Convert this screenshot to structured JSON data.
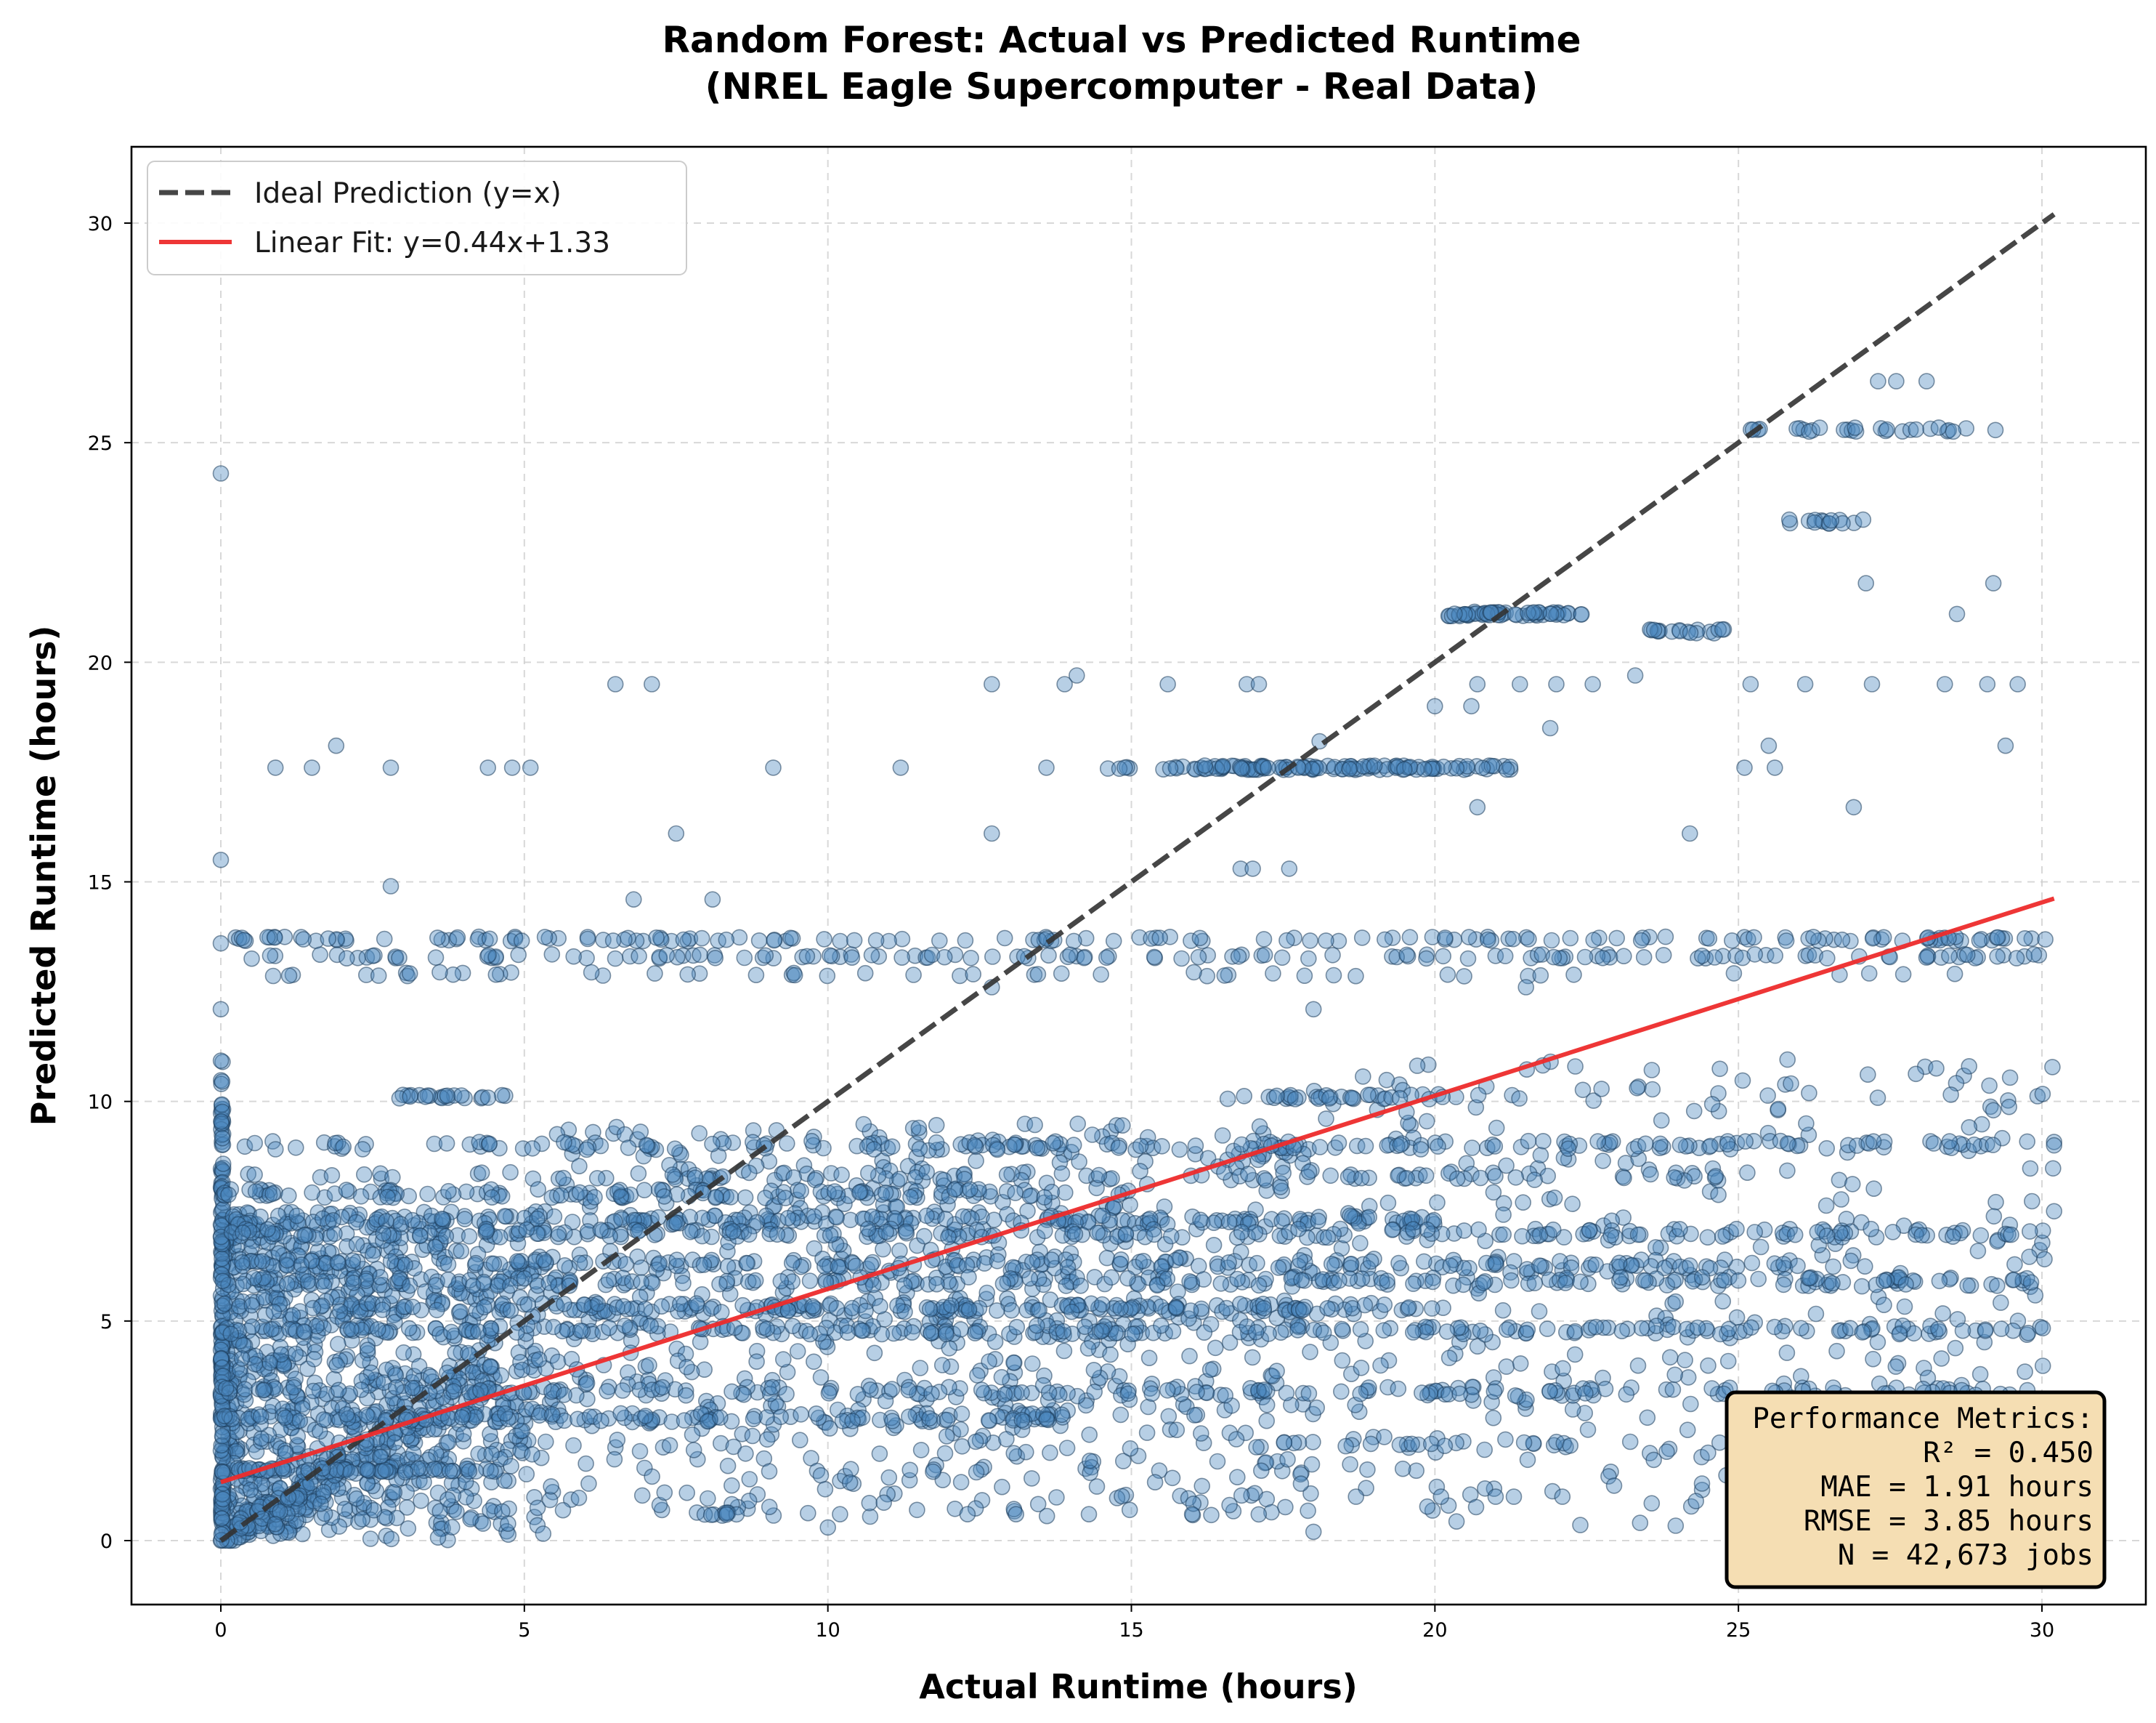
{
  "chart_data": {
    "type": "scatter",
    "title": "Random Forest: Actual vs Predicted Runtime",
    "subtitle": "(NREL Eagle Supercomputer - Real Data)",
    "xlabel": "Actual Runtime (hours)",
    "ylabel": "Predicted Runtime (hours)",
    "xlim": [
      -1.5,
      31.5
    ],
    "ylim": [
      -1.5,
      31.7
    ],
    "xticks": [
      0,
      5,
      10,
      15,
      20,
      25,
      30
    ],
    "yticks": [
      0,
      5,
      10,
      15,
      20,
      25,
      30
    ],
    "grid": true,
    "legend_position": "top-left",
    "colors": {
      "points": "#4682b4",
      "ideal_line": "#333333",
      "fit_line": "#ee2c2c",
      "metrics_box": "#f5deb3"
    },
    "series": [
      {
        "name": "Ideal Prediction (y=x)",
        "kind": "line",
        "style": "dashed",
        "x": [
          0,
          30.2
        ],
        "y": [
          0,
          30.2
        ]
      },
      {
        "name": "Linear Fit: y=0.44x+1.33",
        "kind": "line",
        "style": "solid",
        "x": [
          0,
          30.2
        ],
        "y": [
          1.33,
          14.62
        ]
      },
      {
        "kind": "scatter",
        "bands": [
          {
            "y": 13.7,
            "x_min": 0,
            "x_max": 30.2,
            "n": 160,
            "spread": 0.05
          },
          {
            "y": 13.3,
            "x_min": 0.3,
            "x_max": 30.2,
            "n": 140,
            "spread": 0.05
          },
          {
            "y": 12.9,
            "x_min": 0.3,
            "x_max": 29.5,
            "n": 50,
            "spread": 0.05
          },
          {
            "y": 17.6,
            "x_min": 16.0,
            "x_max": 21.3,
            "n": 110,
            "spread": 0.05
          },
          {
            "y": 17.6,
            "x_min": 14.5,
            "x_max": 16.0,
            "n": 10,
            "spread": 0.05
          },
          {
            "y": 21.1,
            "x_min": 20.2,
            "x_max": 22.5,
            "n": 55,
            "spread": 0.05
          },
          {
            "y": 20.7,
            "x_min": 23.5,
            "x_max": 24.8,
            "n": 18,
            "spread": 0.05
          },
          {
            "y": 25.3,
            "x_min": 25.1,
            "x_max": 29.3,
            "n": 28,
            "spread": 0.05
          },
          {
            "y": 23.2,
            "x_min": 25.8,
            "x_max": 27.1,
            "n": 14,
            "spread": 0.05
          },
          {
            "y": 10.1,
            "x_min": 2.9,
            "x_max": 4.7,
            "n": 22,
            "spread": 0.05
          },
          {
            "y": 10.1,
            "x_min": 16.5,
            "x_max": 21.5,
            "n": 35,
            "spread": 0.05
          },
          {
            "y": 9.0,
            "x_min": 0,
            "x_max": 30.2,
            "n": 170,
            "spread": 0.1
          },
          {
            "y": 8.3,
            "x_min": 0,
            "x_max": 25.0,
            "n": 90,
            "spread": 0.1
          },
          {
            "y": 7.9,
            "x_min": 0,
            "x_max": 14.0,
            "n": 120,
            "spread": 0.1
          },
          {
            "y": 7.3,
            "x_min": 0,
            "x_max": 20.0,
            "n": 180,
            "spread": 0.1
          },
          {
            "y": 7.0,
            "x_min": 0,
            "x_max": 30.2,
            "n": 200,
            "spread": 0.1
          },
          {
            "y": 6.3,
            "x_min": 0,
            "x_max": 26.0,
            "n": 170,
            "spread": 0.1
          },
          {
            "y": 5.9,
            "x_min": 0,
            "x_max": 30.2,
            "n": 220,
            "spread": 0.1
          },
          {
            "y": 5.3,
            "x_min": 0,
            "x_max": 20.5,
            "n": 200,
            "spread": 0.1
          },
          {
            "y": 4.8,
            "x_min": 0,
            "x_max": 30.2,
            "n": 230,
            "spread": 0.1
          },
          {
            "y": 3.4,
            "x_min": 0,
            "x_max": 30.0,
            "n": 170,
            "spread": 0.1
          },
          {
            "y": 2.8,
            "x_min": 0,
            "x_max": 14.0,
            "n": 130,
            "spread": 0.1
          },
          {
            "y": 2.2,
            "x_min": 17.5,
            "x_max": 22.5,
            "n": 20,
            "spread": 0.05
          },
          {
            "y": 1.6,
            "x_min": 0,
            "x_max": 4.5,
            "n": 60,
            "spread": 0.05
          },
          {
            "y": 0.6,
            "x_min": 7.8,
            "x_max": 8.6,
            "n": 10,
            "spread": 0.05
          }
        ],
        "dense_region": {
          "x_min": 0,
          "x_max": 5.5,
          "y_min": 0,
          "y_max": 7.5,
          "n": 900
        },
        "mid_cloud": {
          "x_min": 5.5,
          "x_max": 18,
          "y_min": 0.5,
          "y_max": 9.5,
          "n": 700
        },
        "far_cloud": {
          "x_min": 18,
          "x_max": 30.2,
          "y_min": 0.3,
          "y_max": 11,
          "n": 360
        },
        "x0_column": {
          "x": 0,
          "y_min": 0,
          "y_max": 11.0,
          "n": 120
        },
        "outliers": [
          [
            0,
            24.3
          ],
          [
            0,
            15.5
          ],
          [
            0,
            13.6
          ],
          [
            0,
            12.1
          ],
          [
            0.9,
            17.6
          ],
          [
            1.5,
            17.6
          ],
          [
            1.9,
            18.1
          ],
          [
            2.8,
            17.6
          ],
          [
            2.8,
            14.9
          ],
          [
            4.4,
            17.6
          ],
          [
            4.8,
            17.6
          ],
          [
            5.1,
            17.6
          ],
          [
            6.5,
            19.5
          ],
          [
            7.1,
            19.5
          ],
          [
            7.5,
            16.1
          ],
          [
            6.8,
            14.6
          ],
          [
            8.1,
            14.6
          ],
          [
            9.1,
            17.6
          ],
          [
            11.2,
            17.6
          ],
          [
            12.7,
            19.5
          ],
          [
            12.7,
            16.1
          ],
          [
            13.6,
            17.6
          ],
          [
            13.9,
            19.5
          ],
          [
            14.1,
            19.7
          ],
          [
            15.6,
            19.5
          ],
          [
            16.9,
            19.5
          ],
          [
            17.1,
            19.5
          ],
          [
            16.8,
            15.3
          ],
          [
            17.0,
            15.3
          ],
          [
            17.6,
            15.3
          ],
          [
            18.1,
            18.2
          ],
          [
            20.0,
            19.0
          ],
          [
            20.6,
            19.0
          ],
          [
            20.7,
            16.7
          ],
          [
            20.7,
            19.5
          ],
          [
            21.4,
            19.5
          ],
          [
            21.9,
            18.5
          ],
          [
            22.0,
            19.5
          ],
          [
            22.6,
            19.5
          ],
          [
            23.3,
            19.7
          ],
          [
            24.2,
            16.1
          ],
          [
            25.1,
            17.6
          ],
          [
            25.2,
            19.5
          ],
          [
            25.5,
            18.1
          ],
          [
            25.6,
            17.6
          ],
          [
            26.1,
            19.5
          ],
          [
            26.9,
            16.7
          ],
          [
            27.1,
            21.8
          ],
          [
            27.2,
            19.5
          ],
          [
            27.3,
            26.4
          ],
          [
            27.6,
            26.4
          ],
          [
            28.1,
            26.4
          ],
          [
            28.4,
            19.5
          ],
          [
            28.6,
            21.1
          ],
          [
            29.1,
            19.5
          ],
          [
            29.2,
            21.8
          ],
          [
            29.4,
            18.1
          ],
          [
            29.6,
            19.5
          ],
          [
            18.0,
            0.2
          ],
          [
            18.7,
            1.0
          ],
          [
            16.0,
            0.6
          ],
          [
            14.3,
            0.6
          ],
          [
            13.1,
            0.6
          ],
          [
            10.0,
            0.3
          ],
          [
            10.2,
            0.6
          ],
          [
            12.3,
            0.6
          ],
          [
            20.1,
            1.0
          ],
          [
            21.0,
            1.0
          ],
          [
            21.3,
            1.0
          ],
          [
            23.5,
            2.8
          ],
          [
            24.5,
            2.0
          ],
          [
            24.3,
            0.9
          ],
          [
            22.1,
            1.0
          ],
          [
            12.7,
            12.6
          ],
          [
            18.0,
            12.1
          ],
          [
            21.5,
            12.6
          ],
          [
            30.2,
            9.0
          ],
          [
            30.2,
            7.5
          ],
          [
            29.2,
            9.8
          ],
          [
            28.8,
            10.8
          ]
        ]
      }
    ],
    "metrics_box": {
      "lines": [
        "Performance Metrics:",
        "R² = 0.450",
        "MAE = 1.91 hours",
        "RMSE = 3.85 hours",
        "N = 42,673 jobs"
      ]
    }
  }
}
